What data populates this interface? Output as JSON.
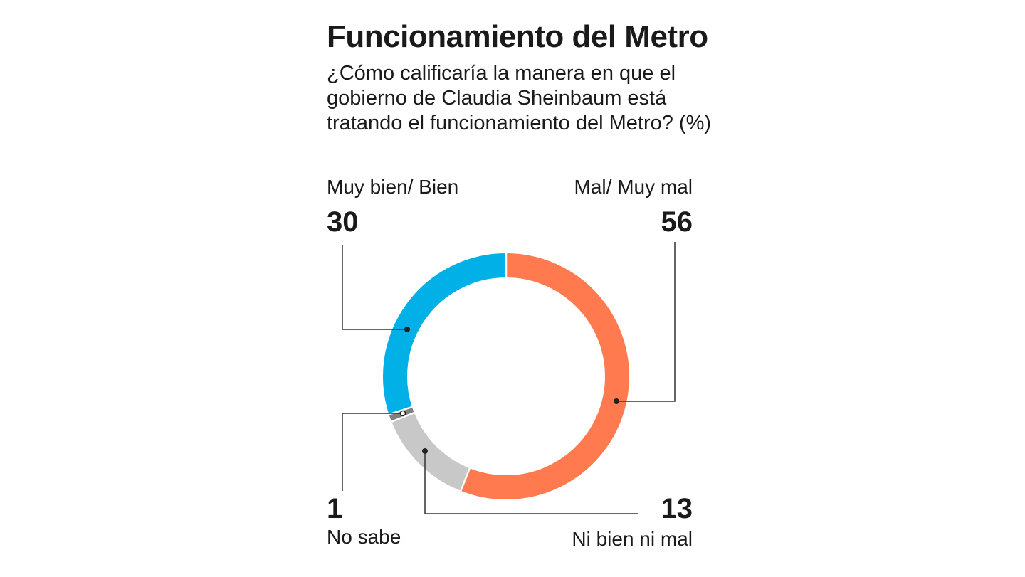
{
  "chart_data": {
    "type": "pie",
    "title": "Funcionamiento del Metro",
    "subtitle": "¿Cómo calificaría la manera en que el gobierno de Claudia Sheinbaum está tratando el funcionamiento del Metro? (%)",
    "unit": "%",
    "slices": [
      {
        "label": "Mal/ Muy mal",
        "value": 56,
        "color": "#ff7a4f"
      },
      {
        "label": "Ni bien ni mal",
        "value": 13,
        "color": "#c8c8c8"
      },
      {
        "label": "No sabe",
        "value": 1,
        "color": "#7f7f7f"
      },
      {
        "label": "Muy bien/ Bien",
        "value": 30,
        "color": "#00b0e6"
      }
    ],
    "display_values": {
      "muy_bien": "30",
      "mal": "56",
      "no_sabe": "1",
      "ni_bien": "13"
    }
  }
}
